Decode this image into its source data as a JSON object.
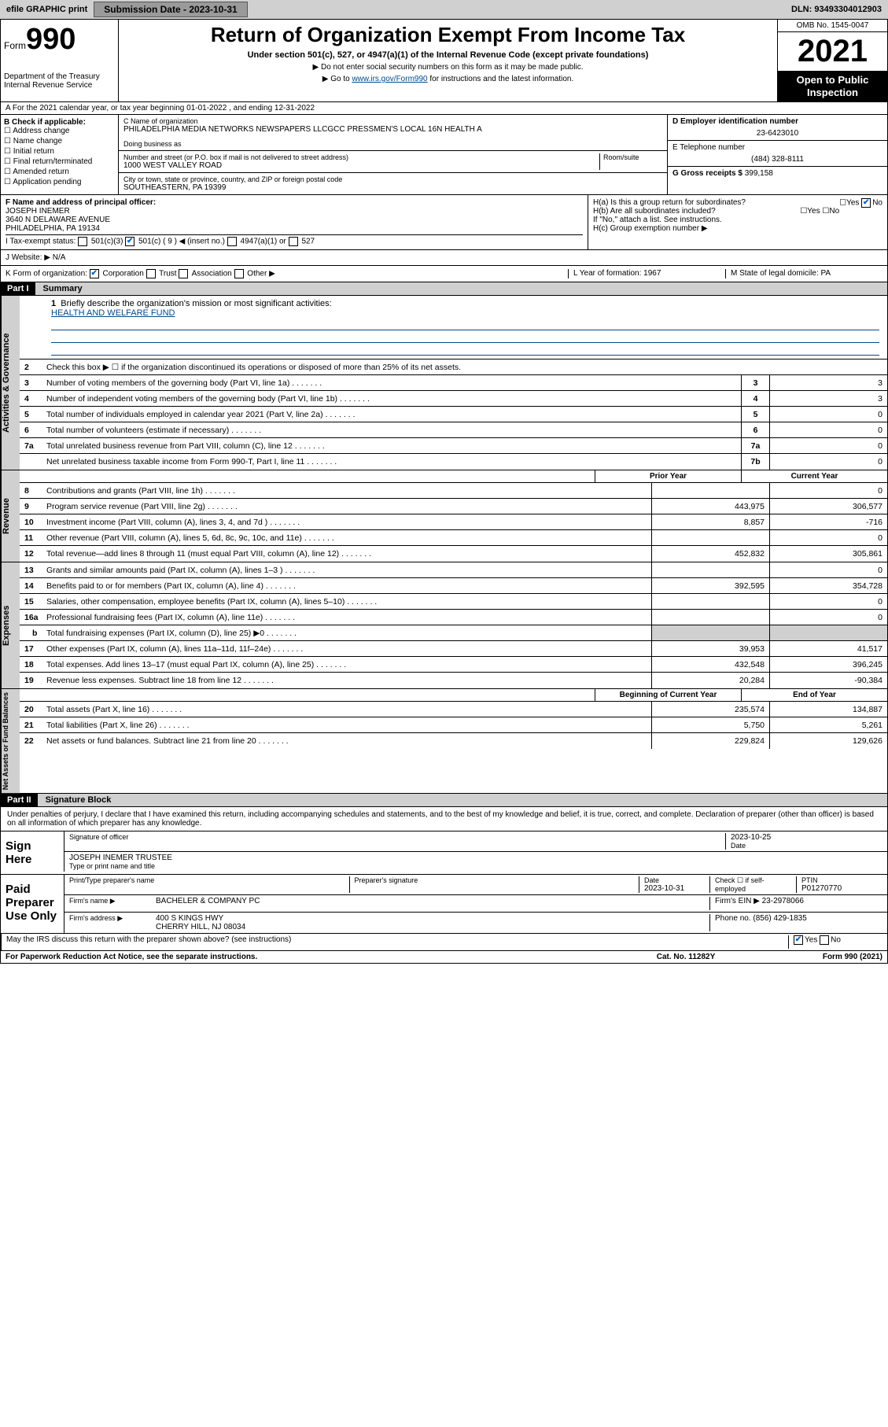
{
  "topbar": {
    "efile": "efile GRAPHIC print",
    "submission_label": "Submission Date - 2023-10-31",
    "dln": "DLN: 93493304012903"
  },
  "header": {
    "form_label": "Form",
    "form_number": "990",
    "dept": "Department of the Treasury\nInternal Revenue Service",
    "title": "Return of Organization Exempt From Income Tax",
    "subtitle": "Under section 501(c), 527, or 4947(a)(1) of the Internal Revenue Code (except private foundations)",
    "note1": "▶ Do not enter social security numbers on this form as it may be made public.",
    "note2": "▶ Go to ",
    "note2_link": "www.irs.gov/Form990",
    "note2_suffix": " for instructions and the latest information.",
    "omb": "OMB No. 1545-0047",
    "year": "2021",
    "open_public": "Open to Public Inspection"
  },
  "rowA": "A For the 2021 calendar year, or tax year beginning 01-01-2022  , and ending 12-31-2022",
  "B": {
    "label": "B Check if applicable:",
    "items": [
      "Address change",
      "Name change",
      "Initial return",
      "Final return/terminated",
      "Amended return",
      "Application pending"
    ]
  },
  "C": {
    "name_label": "C Name of organization",
    "name": "PHILADELPHIA MEDIA NETWORKS NEWSPAPERS LLCGCC PRESSMEN'S LOCAL 16N HEALTH A",
    "dba_label": "Doing business as",
    "addr_label": "Number and street (or P.O. box if mail is not delivered to street address)",
    "room_label": "Room/suite",
    "addr": "1000 WEST VALLEY ROAD",
    "city_label": "City or town, state or province, country, and ZIP or foreign postal code",
    "city": "SOUTHEASTERN, PA  19399"
  },
  "D": {
    "ein_label": "D Employer identification number",
    "ein": "23-6423010",
    "phone_label": "E Telephone number",
    "phone": "(484) 328-8111",
    "gross_label": "G Gross receipts $",
    "gross": "399,158"
  },
  "F": {
    "label": "F Name and address of principal officer:",
    "name": "JOSEPH INEMER",
    "addr1": "3640 N DELAWARE AVENUE",
    "addr2": "PHILADELPHIA, PA  19134"
  },
  "H": {
    "a": "H(a) Is this a group return for subordinates?",
    "a_no": "No",
    "b": "H(b) Are all subordinates included?",
    "b_note": "If \"No,\" attach a list. See instructions.",
    "c": "H(c) Group exemption number ▶"
  },
  "I": {
    "label": "I   Tax-exempt status:",
    "opts": [
      "501(c)(3)",
      "501(c) ( 9 ) ◀ (insert no.)",
      "4947(a)(1) or",
      "527"
    ]
  },
  "J": {
    "label": "J   Website: ▶",
    "val": "N/A"
  },
  "K": {
    "label": "K Form of organization:",
    "opts": [
      "Corporation",
      "Trust",
      "Association",
      "Other ▶"
    ],
    "L": "L Year of formation: 1967",
    "M": "M State of legal domicile: PA"
  },
  "parts": {
    "p1": "Part I",
    "p1t": "Summary",
    "p2": "Part II",
    "p2t": "Signature Block"
  },
  "summary": {
    "q1": "Briefly describe the organization's mission or most significant activities:",
    "q1v": "HEALTH AND WELFARE FUND",
    "q2": "Check this box ▶ ☐ if the organization discontinued its operations or disposed of more than 25% of its net assets.",
    "lines_top": [
      {
        "n": "3",
        "t": "Number of voting members of the governing body (Part VI, line 1a)",
        "box": "3",
        "v": "3"
      },
      {
        "n": "4",
        "t": "Number of independent voting members of the governing body (Part VI, line 1b)",
        "box": "4",
        "v": "3"
      },
      {
        "n": "5",
        "t": "Total number of individuals employed in calendar year 2021 (Part V, line 2a)",
        "box": "5",
        "v": "0"
      },
      {
        "n": "6",
        "t": "Total number of volunteers (estimate if necessary)",
        "box": "6",
        "v": "0"
      },
      {
        "n": "7a",
        "t": "Total unrelated business revenue from Part VIII, column (C), line 12",
        "box": "7a",
        "v": "0"
      },
      {
        "n": "",
        "t": "Net unrelated business taxable income from Form 990-T, Part I, line 11",
        "box": "7b",
        "v": "0"
      }
    ],
    "col_prior": "Prior Year",
    "col_current": "Current Year",
    "col_boy": "Beginning of Current Year",
    "col_eoy": "End of Year",
    "revenue": [
      {
        "n": "8",
        "t": "Contributions and grants (Part VIII, line 1h)",
        "p": "",
        "c": "0"
      },
      {
        "n": "9",
        "t": "Program service revenue (Part VIII, line 2g)",
        "p": "443,975",
        "c": "306,577"
      },
      {
        "n": "10",
        "t": "Investment income (Part VIII, column (A), lines 3, 4, and 7d )",
        "p": "8,857",
        "c": "-716"
      },
      {
        "n": "11",
        "t": "Other revenue (Part VIII, column (A), lines 5, 6d, 8c, 9c, 10c, and 11e)",
        "p": "",
        "c": "0"
      },
      {
        "n": "12",
        "t": "Total revenue—add lines 8 through 11 (must equal Part VIII, column (A), line 12)",
        "p": "452,832",
        "c": "305,861"
      }
    ],
    "expenses": [
      {
        "n": "13",
        "t": "Grants and similar amounts paid (Part IX, column (A), lines 1–3 )",
        "p": "",
        "c": "0"
      },
      {
        "n": "14",
        "t": "Benefits paid to or for members (Part IX, column (A), line 4)",
        "p": "392,595",
        "c": "354,728"
      },
      {
        "n": "15",
        "t": "Salaries, other compensation, employee benefits (Part IX, column (A), lines 5–10)",
        "p": "",
        "c": "0"
      },
      {
        "n": "16a",
        "t": "Professional fundraising fees (Part IX, column (A), line 11e)",
        "p": "",
        "c": "0"
      },
      {
        "n": "b",
        "t": "Total fundraising expenses (Part IX, column (D), line 25) ▶0",
        "p": "shade",
        "c": "shade",
        "sub": true
      },
      {
        "n": "17",
        "t": "Other expenses (Part IX, column (A), lines 11a–11d, 11f–24e)",
        "p": "39,953",
        "c": "41,517"
      },
      {
        "n": "18",
        "t": "Total expenses. Add lines 13–17 (must equal Part IX, column (A), line 25)",
        "p": "432,548",
        "c": "396,245"
      },
      {
        "n": "19",
        "t": "Revenue less expenses. Subtract line 18 from line 12",
        "p": "20,284",
        "c": "-90,384"
      }
    ],
    "netassets": [
      {
        "n": "20",
        "t": "Total assets (Part X, line 16)",
        "p": "235,574",
        "c": "134,887"
      },
      {
        "n": "21",
        "t": "Total liabilities (Part X, line 26)",
        "p": "5,750",
        "c": "5,261"
      },
      {
        "n": "22",
        "t": "Net assets or fund balances. Subtract line 21 from line 20",
        "p": "229,824",
        "c": "129,626"
      }
    ]
  },
  "sidelabels": {
    "gov": "Activities & Governance",
    "rev": "Revenue",
    "exp": "Expenses",
    "net": "Net Assets or Fund Balances"
  },
  "sig": {
    "decl": "Under penalties of perjury, I declare that I have examined this return, including accompanying schedules and statements, and to the best of my knowledge and belief, it is true, correct, and complete. Declaration of preparer (other than officer) is based on all information of which preparer has any knowledge.",
    "sign_here": "Sign Here",
    "sig_officer": "Signature of officer",
    "date": "Date",
    "date_v": "2023-10-25",
    "name_title": "JOSEPH INEMER  TRUSTEE",
    "name_title_label": "Type or print name and title",
    "paid": "Paid Preparer Use Only",
    "prep_name_label": "Print/Type preparer's name",
    "prep_sig_label": "Preparer's signature",
    "prep_date_label": "Date",
    "prep_date": "2023-10-31",
    "check_self": "Check ☐ if self-employed",
    "ptin_label": "PTIN",
    "ptin": "P01270770",
    "firm_name_label": "Firm's name    ▶",
    "firm_name": "BACHELER & COMPANY PC",
    "firm_ein_label": "Firm's EIN ▶",
    "firm_ein": "23-2978066",
    "firm_addr_label": "Firm's address ▶",
    "firm_addr1": "400 S KINGS HWY",
    "firm_addr2": "CHERRY HILL, NJ  08034",
    "firm_phone_label": "Phone no.",
    "firm_phone": "(856) 429-1835",
    "discuss": "May the IRS discuss this return with the preparer shown above? (see instructions)"
  },
  "footer": {
    "pra": "For Paperwork Reduction Act Notice, see the separate instructions.",
    "cat": "Cat. No. 11282Y",
    "form": "Form 990 (2021)"
  },
  "colors": {
    "topbar_bg": "#d0d0d0",
    "link": "#004b8d",
    "check": "#0066cc"
  }
}
